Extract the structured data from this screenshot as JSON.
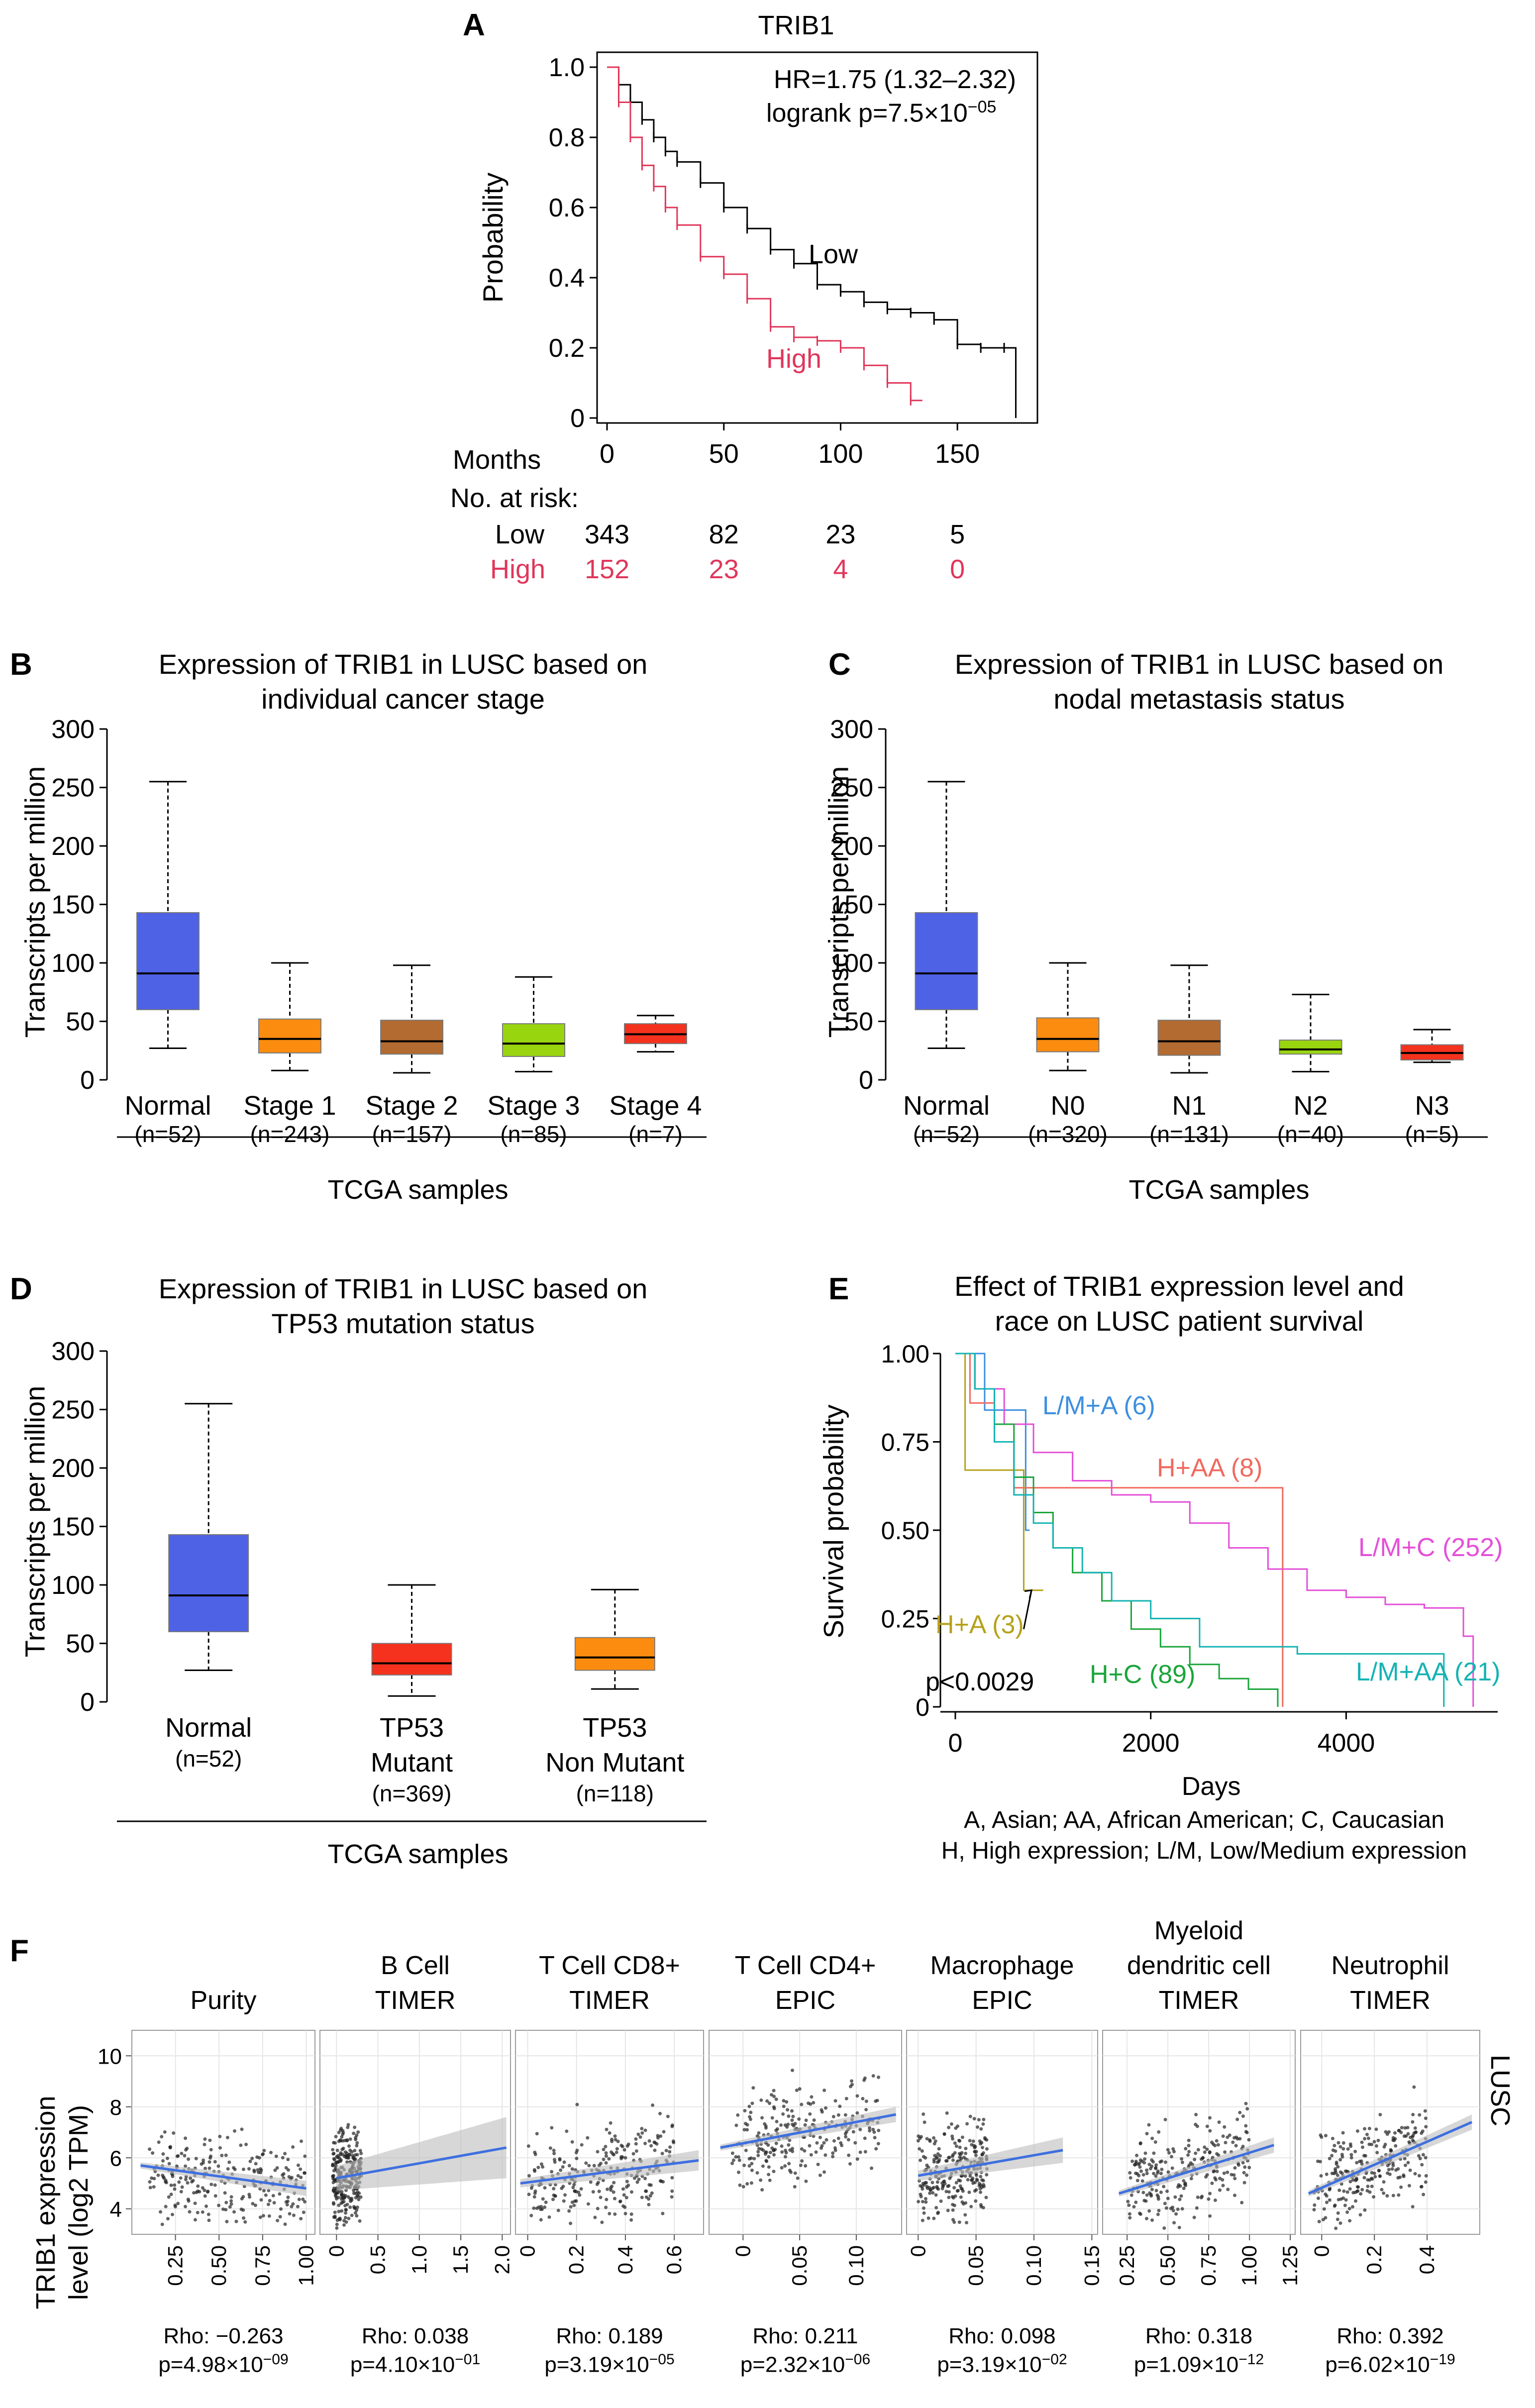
{
  "panel_labels": {
    "A": "A",
    "B": "B",
    "C": "C",
    "D": "D",
    "E": "E",
    "F": "F"
  },
  "chart_data": [
    {
      "id": "A",
      "type": "line",
      "title": "TRIB1",
      "xlabel": "Months",
      "ylabel": "Probability",
      "xlim": [
        0,
        180
      ],
      "ylim": [
        0,
        1.0
      ],
      "x_ticks": [
        "0",
        "50",
        "100",
        "150"
      ],
      "y_ticks": [
        "0",
        "0.2",
        "0.4",
        "0.6",
        "0.8",
        "1.0"
      ],
      "annotation_hr": "HR=1.75 (1.32–2.32)",
      "annotation_logrank": "logrank p=7.5×10",
      "annotation_logrank_exp": "−05",
      "series": [
        {
          "name": "Low",
          "color": "#000000",
          "x": [
            0,
            5,
            10,
            15,
            20,
            25,
            30,
            40,
            50,
            60,
            70,
            80,
            90,
            100,
            110,
            120,
            130,
            140,
            150,
            160,
            170,
            175
          ],
          "y": [
            1.0,
            0.95,
            0.9,
            0.85,
            0.8,
            0.76,
            0.73,
            0.67,
            0.6,
            0.54,
            0.48,
            0.44,
            0.38,
            0.36,
            0.33,
            0.31,
            0.3,
            0.28,
            0.21,
            0.2,
            0.2,
            0.0
          ]
        },
        {
          "name": "High",
          "color": "#e0365a",
          "x": [
            0,
            5,
            10,
            15,
            20,
            25,
            30,
            40,
            50,
            60,
            70,
            80,
            90,
            100,
            110,
            120,
            130,
            135
          ],
          "y": [
            1.0,
            0.9,
            0.8,
            0.72,
            0.66,
            0.6,
            0.55,
            0.46,
            0.41,
            0.34,
            0.26,
            0.23,
            0.22,
            0.2,
            0.15,
            0.1,
            0.05,
            0.05
          ]
        }
      ],
      "risk_table": {
        "header": "No. at risk:",
        "rows": [
          {
            "label": "Low",
            "color": "#000000",
            "values": [
              "343",
              "82",
              "23",
              "5"
            ]
          },
          {
            "label": "High",
            "color": "#e0365a",
            "values": [
              "152",
              "23",
              "4",
              "0"
            ]
          }
        ]
      }
    },
    {
      "id": "B",
      "type": "boxplot",
      "title": "Expression of TRIB1 in LUSC based on individual cancer stage",
      "title_line1": "Expression of TRIB1 in LUSC based on",
      "title_line2": "individual cancer stage",
      "ylabel": "Transcripts per million",
      "xlabel": "TCGA samples",
      "ylim": [
        0,
        300
      ],
      "y_ticks": [
        "0",
        "50",
        "100",
        "150",
        "200",
        "250",
        "300"
      ],
      "boxes": [
        {
          "label": "Normal",
          "n": "(n=52)",
          "color": "#4e62e6",
          "min": 27,
          "q1": 60,
          "median": 91,
          "q3": 143,
          "max": 255
        },
        {
          "label": "Stage 1",
          "n": "(n=243)",
          "color": "#fb8c10",
          "min": 8,
          "q1": 23,
          "median": 35,
          "q3": 52,
          "max": 100
        },
        {
          "label": "Stage 2",
          "n": "(n=157)",
          "color": "#b36b31",
          "min": 6,
          "q1": 22,
          "median": 33,
          "q3": 51,
          "max": 98
        },
        {
          "label": "Stage 3",
          "n": "(n=85)",
          "color": "#99d50f",
          "min": 7,
          "q1": 20,
          "median": 31,
          "q3": 48,
          "max": 88
        },
        {
          "label": "Stage 4",
          "n": "(n=7)",
          "color": "#f4321e",
          "min": 24,
          "q1": 31,
          "median": 39,
          "q3": 48,
          "max": 55
        }
      ]
    },
    {
      "id": "C",
      "type": "boxplot",
      "title": "Expression of TRIB1 in LUSC based on nodal metastasis status",
      "title_line1": "Expression of TRIB1 in LUSC based on",
      "title_line2": "nodal metastasis status",
      "ylabel": "Transcripts per million",
      "xlabel": "TCGA samples",
      "ylim": [
        0,
        300
      ],
      "y_ticks": [
        "0",
        "50",
        "100",
        "150",
        "200",
        "250",
        "300"
      ],
      "boxes": [
        {
          "label": "Normal",
          "n": "(n=52)",
          "color": "#4e62e6",
          "min": 27,
          "q1": 60,
          "median": 91,
          "q3": 143,
          "max": 255
        },
        {
          "label": "N0",
          "n": "(n=320)",
          "color": "#fb8c10",
          "min": 8,
          "q1": 24,
          "median": 35,
          "q3": 53,
          "max": 100
        },
        {
          "label": "N1",
          "n": "(n=131)",
          "color": "#b36b31",
          "min": 6,
          "q1": 21,
          "median": 33,
          "q3": 51,
          "max": 98
        },
        {
          "label": "N2",
          "n": "(n=40)",
          "color": "#99d50f",
          "min": 7,
          "q1": 22,
          "median": 26,
          "q3": 34,
          "max": 73
        },
        {
          "label": "N3",
          "n": "(n=5)",
          "color": "#f4321e",
          "min": 15,
          "q1": 17,
          "median": 23,
          "q3": 30,
          "max": 43
        }
      ]
    },
    {
      "id": "D",
      "type": "boxplot",
      "title": "Expression of TRIB1 in LUSC based on TP53 mutation status",
      "title_line1": "Expression of TRIB1 in LUSC based on",
      "title_line2": "TP53 mutation status",
      "ylabel": "Transcripts per million",
      "xlabel": "TCGA samples",
      "ylim": [
        0,
        300
      ],
      "y_ticks": [
        "0",
        "50",
        "100",
        "150",
        "200",
        "250",
        "300"
      ],
      "boxes": [
        {
          "label": "Normal",
          "label2": "",
          "n": "(n=52)",
          "color": "#4e62e6",
          "min": 27,
          "q1": 60,
          "median": 91,
          "q3": 143,
          "max": 255
        },
        {
          "label": "TP53",
          "label2": "Mutant",
          "n": "(n=369)",
          "color": "#f4321e",
          "min": 5,
          "q1": 23,
          "median": 33,
          "q3": 50,
          "max": 100
        },
        {
          "label": "TP53",
          "label2": "Non Mutant",
          "n": "(n=118)",
          "color": "#fb8c10",
          "min": 11,
          "q1": 27,
          "median": 38,
          "q3": 55,
          "max": 96
        }
      ]
    },
    {
      "id": "E",
      "type": "line",
      "title": "Effect of TRIB1 expression level and race on LUSC patient survival",
      "title_line1": "Effect of TRIB1 expression level and",
      "title_line2": "race on LUSC patient survival",
      "xlabel": "Days",
      "ylabel": "Survival probability",
      "xlim": [
        0,
        5500
      ],
      "ylim": [
        0,
        1.0
      ],
      "x_ticks": [
        "0",
        "2000",
        "4000"
      ],
      "y_ticks": [
        "0",
        "0.25",
        "0.50",
        "0.75",
        "1.00"
      ],
      "pvalue": "p<0.0029",
      "footnote_1": "A, Asian; AA, African American; C, Caucasian",
      "footnote_2": "H, High expression; L/M, Low/Medium expression",
      "series": [
        {
          "name": "L/M+A (6)",
          "color": "#3d8fe0",
          "x": [
            0,
            200,
            300,
            400,
            500,
            700,
            720,
            750,
            760
          ],
          "y": [
            1.0,
            1.0,
            0.84,
            0.84,
            0.84,
            0.84,
            0.5,
            0.5,
            0.5
          ]
        },
        {
          "name": "H+AA (8)",
          "color": "#f06a5f",
          "x": [
            0,
            150,
            400,
            600,
            800,
            3350,
            3350
          ],
          "y": [
            1.0,
            0.86,
            0.75,
            0.62,
            0.62,
            0.62,
            0.0
          ]
        },
        {
          "name": "L/M+C (252)",
          "color": "#e44fd8",
          "x": [
            0,
            200,
            500,
            800,
            1200,
            1600,
            2000,
            2400,
            2800,
            3200,
            3600,
            4000,
            4400,
            4800,
            5200,
            5300
          ],
          "y": [
            1.0,
            0.9,
            0.8,
            0.72,
            0.64,
            0.6,
            0.58,
            0.52,
            0.45,
            0.39,
            0.33,
            0.31,
            0.29,
            0.28,
            0.2,
            0.0
          ]
        },
        {
          "name": "H+A (3)",
          "color": "#b5a21b",
          "x": [
            0,
            100,
            100,
            700,
            700,
            900
          ],
          "y": [
            1.0,
            1.0,
            0.67,
            0.67,
            0.33,
            0.33
          ]
        },
        {
          "name": "H+C (89)",
          "color": "#1aa53a",
          "x": [
            0,
            200,
            400,
            600,
            800,
            1000,
            1200,
            1500,
            1800,
            2100,
            2400,
            2700,
            3000,
            3300
          ],
          "y": [
            1.0,
            0.9,
            0.8,
            0.65,
            0.55,
            0.45,
            0.38,
            0.3,
            0.22,
            0.17,
            0.12,
            0.08,
            0.05,
            0.0
          ]
        },
        {
          "name": "L/M+AA (21)",
          "color": "#15b3b3",
          "x": [
            0,
            200,
            400,
            600,
            800,
            1000,
            1300,
            1600,
            2000,
            2500,
            3500,
            4500,
            5000,
            5000
          ],
          "y": [
            1.0,
            0.9,
            0.75,
            0.6,
            0.52,
            0.45,
            0.38,
            0.3,
            0.25,
            0.17,
            0.15,
            0.15,
            0.15,
            0.0
          ]
        }
      ],
      "annotation_arrow": "↗"
    },
    {
      "id": "F",
      "type": "scatter",
      "ylabel_line1": "TRIB1 expression",
      "ylabel_line2": "level (log2 TPM)",
      "side_label": "LUSC",
      "ylim": [
        3,
        11
      ],
      "y_ticks": [
        "4",
        "6",
        "8",
        "10"
      ],
      "panels": [
        {
          "title_lines": [
            "",
            "",
            "Purity"
          ],
          "rho": "Rho: −0.263",
          "p": "p=4.98×10",
          "p_exp": "−09",
          "xlim": [
            0,
            1.05
          ],
          "x_ticks": [
            0.25,
            0.5,
            0.75,
            1.0
          ],
          "x_tick_labels": [
            "0.25",
            "0.50",
            "0.75",
            "1.00"
          ],
          "line": [
            [
              0.05,
              5.7
            ],
            [
              1.0,
              4.8
            ]
          ],
          "ci": 0.3,
          "cloud": {
            "x0": 0.1,
            "x1": 1.0,
            "ymean": 5.3,
            "ysd": 0.9
          }
        },
        {
          "title_lines": [
            "",
            "B Cell",
            "TIMER"
          ],
          "rho": "Rho: 0.038",
          "p": "p=4.10×10",
          "p_exp": "−01",
          "xlim": [
            -0.2,
            2.1
          ],
          "x_ticks": [
            0,
            0.5,
            1.0,
            1.5,
            2.0
          ],
          "x_tick_labels": [
            "0",
            "0.5",
            "1.0",
            "1.5",
            "2.0"
          ],
          "line": [
            [
              0.0,
              5.2
            ],
            [
              2.05,
              6.4
            ]
          ],
          "ci": 1.2,
          "cloud": {
            "x0": -0.05,
            "x1": 0.3,
            "ymean": 5.2,
            "ysd": 0.9
          }
        },
        {
          "title_lines": [
            "",
            "T Cell CD8+",
            "TIMER"
          ],
          "rho": "Rho: 0.189",
          "p": "p=3.19×10",
          "p_exp": "−05",
          "xlim": [
            -0.05,
            0.72
          ],
          "x_ticks": [
            0,
            0.2,
            0.4,
            0.6
          ],
          "x_tick_labels": [
            "0",
            "0.2",
            "0.4",
            "0.6"
          ],
          "line": [
            [
              -0.03,
              5.0
            ],
            [
              0.7,
              5.9
            ]
          ],
          "ci": 0.4,
          "cloud": {
            "x0": 0.0,
            "x1": 0.6,
            "ymean": 5.2,
            "ysd": 0.9
          }
        },
        {
          "title_lines": [
            "",
            "T Cell CD4+",
            "EPIC"
          ],
          "rho": "Rho: 0.211",
          "p": "p=2.32×10",
          "p_exp": "−06",
          "xlim": [
            -0.03,
            0.14
          ],
          "x_ticks": [
            0,
            0.05,
            0.1
          ],
          "x_tick_labels": [
            "0",
            "0.05",
            "0.10"
          ],
          "line": [
            [
              -0.02,
              6.4
            ],
            [
              0.135,
              7.7
            ]
          ],
          "ci": 0.3,
          "cloud": {
            "x0": -0.01,
            "x1": 0.12,
            "ymean": 6.9,
            "ysd": 0.9
          }
        },
        {
          "title_lines": [
            "",
            "Macrophage",
            "EPIC"
          ],
          "rho": "Rho: 0.098",
          "p": "p=3.19×10",
          "p_exp": "−02",
          "xlim": [
            -0.01,
            0.155
          ],
          "x_ticks": [
            0,
            0.05,
            0.1,
            0.15
          ],
          "x_tick_labels": [
            "0",
            "0.05",
            "0.10",
            "0.15"
          ],
          "line": [
            [
              0.0,
              5.3
            ],
            [
              0.125,
              6.3
            ]
          ],
          "ci": 0.5,
          "cloud": {
            "x0": 0.0,
            "x1": 0.06,
            "ymean": 5.3,
            "ysd": 0.9
          }
        },
        {
          "title_lines": [
            "Myeloid",
            "dendritic cell",
            "TIMER"
          ],
          "rho": "Rho: 0.318",
          "p": "p=1.09×10",
          "p_exp": "−12",
          "xlim": [
            0.1,
            1.28
          ],
          "x_ticks": [
            0.25,
            0.5,
            0.75,
            1.0,
            1.25
          ],
          "x_tick_labels": [
            "0.25",
            "0.50",
            "0.75",
            "1.00",
            "1.25"
          ],
          "line": [
            [
              0.2,
              4.6
            ],
            [
              1.15,
              6.5
            ]
          ],
          "ci": 0.3,
          "cloud": {
            "x0": 0.25,
            "x1": 1.0,
            "ymean": 5.3,
            "ysd": 0.9
          }
        },
        {
          "title_lines": [
            "",
            "Neutrophil",
            "TIMER"
          ],
          "rho": "Rho: 0.392",
          "p": "p=6.02×10",
          "p_exp": "−19",
          "xlim": [
            -0.08,
            0.6
          ],
          "x_ticks": [
            0,
            0.2,
            0.4
          ],
          "x_tick_labels": [
            "0",
            "0.2",
            "0.4"
          ],
          "line": [
            [
              -0.05,
              4.6
            ],
            [
              0.57,
              7.4
            ]
          ],
          "ci": 0.3,
          "cloud": {
            "x0": -0.03,
            "x1": 0.4,
            "ymean": 5.4,
            "ysd": 0.9
          }
        }
      ]
    }
  ]
}
